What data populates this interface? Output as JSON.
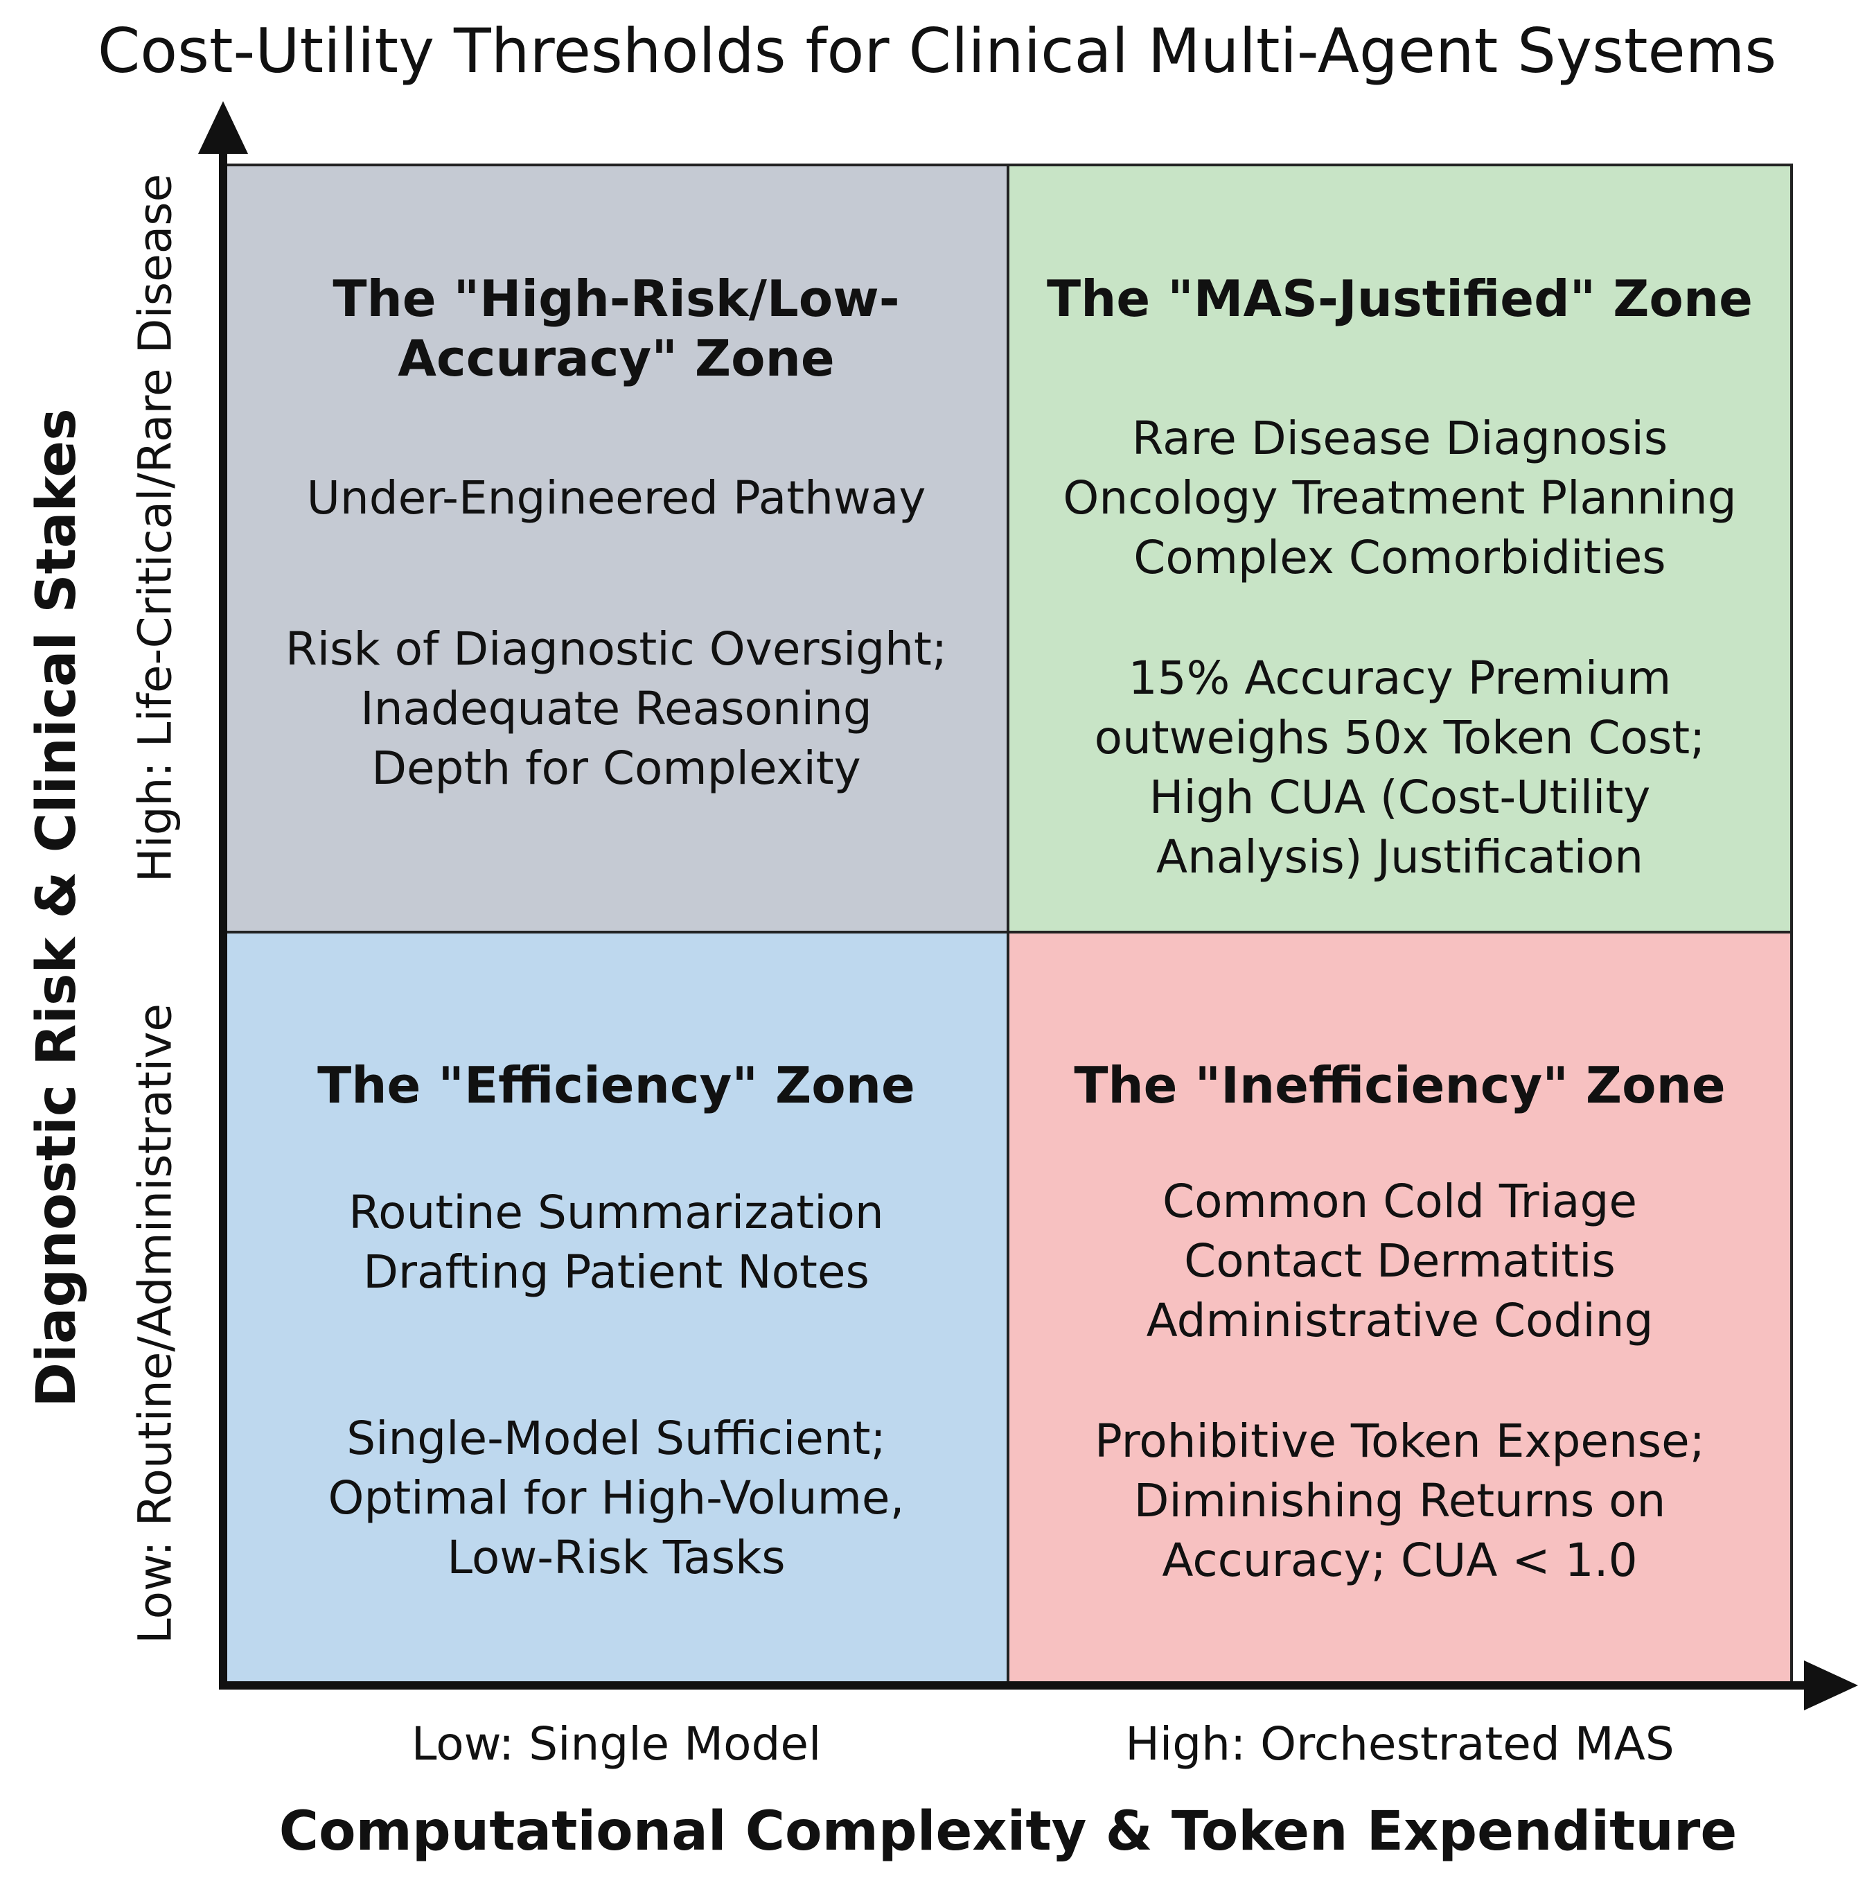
{
  "title": "Cost-Utility Thresholds for Clinical Multi-Agent Systems",
  "x_axis": {
    "label": "Computational Complexity & Token Expenditure",
    "low": "Low: Single Model",
    "high": "High: Orchestrated MAS"
  },
  "y_axis": {
    "label": "Diagnostic Risk & Clinical Stakes",
    "low": "Low: Routine/Administrative",
    "high": "High: Life-Critical/Rare Disease"
  },
  "quadrants": {
    "top_left": {
      "title_line1": "The \"High-Risk/Low-",
      "title_line2": "Accuracy\" Zone",
      "subtitle": "Under-Engineered Pathway",
      "note_line1": "Risk of Diagnostic Oversight;",
      "note_line2": "Inadequate Reasoning",
      "note_line3": "Depth for Complexity",
      "color": "#c5cad3"
    },
    "top_right": {
      "title": "The \"MAS-Justified\" Zone",
      "example1": "Rare Disease Diagnosis",
      "example2": "Oncology Treatment Planning",
      "example3": "Complex Comorbidities",
      "note_line1": "15% Accuracy Premium",
      "note_line2": "outweighs 50x Token Cost;",
      "note_line3": "High CUA (Cost-Utility",
      "note_line4": "Analysis) Justification",
      "color": "#c8e4c6"
    },
    "bottom_left": {
      "title": "The \"Efficiency\" Zone",
      "example1": "Routine Summarization",
      "example2": "Drafting Patient Notes",
      "note_line1": "Single-Model Sufficient;",
      "note_line2": "Optimal for High-Volume,",
      "note_line3": "Low-Risk Tasks",
      "color": "#bed8ee"
    },
    "bottom_right": {
      "title": "The \"Inefficiency\" Zone",
      "example1": "Common Cold Triage",
      "example2": "Contact Dermatitis",
      "example3": "Administrative Coding",
      "note_line1": "Prohibitive Token Expense;",
      "note_line2": "Diminishing Returns on",
      "note_line3": "Accuracy; CUA < 1.0",
      "color": "#f7c1c1"
    }
  }
}
